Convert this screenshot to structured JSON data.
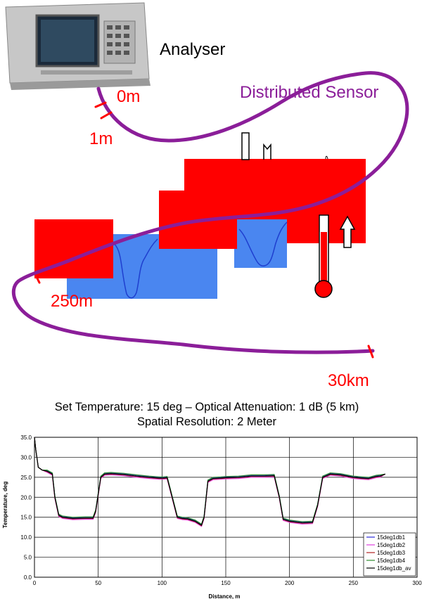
{
  "diagram": {
    "analyser_label": "Analyser",
    "sensor_label": "Distributed Sensor",
    "markers": {
      "m0": "0m",
      "m1": "1m",
      "m250": "250m",
      "km30": "30km"
    },
    "colors": {
      "fiber": "#8B1E99",
      "zone": "#FF0000",
      "water": "#4A86F0",
      "water_line": "#1F3FCF",
      "label_red": "#FF0000"
    }
  },
  "chart_data": {
    "type": "line",
    "title": "Set Temperature: 15 deg – Optical Attenuation: 1 dB (5 km)",
    "subtitle": "Spatial Resolution: 2 Meter",
    "xlabel": "Distance, m",
    "ylabel": "Temperature, deg",
    "xlim": [
      0,
      300
    ],
    "ylim": [
      0,
      35
    ],
    "xticks": [
      "0",
      "50",
      "100",
      "150",
      "200",
      "250",
      "300"
    ],
    "yticks": [
      "0.0",
      "5.0",
      "10.0",
      "15.0",
      "20.0",
      "25.0",
      "30.0",
      "35.0"
    ],
    "grid": true,
    "legend_position": "bottom-right",
    "series": [
      {
        "name": "15deg1db1",
        "color": "#2B2BD9",
        "offset": 0.2
      },
      {
        "name": "15deg1db2",
        "color": "#E040E0",
        "offset": -0.3
      },
      {
        "name": "15deg1db3",
        "color": "#B22222",
        "offset": -0.1
      },
      {
        "name": "15deg1db4",
        "color": "#2E8B2E",
        "offset": 0.3
      },
      {
        "name": "15deg1db_av",
        "color": "#000000",
        "offset": 0.0
      }
    ],
    "x": [
      0,
      1,
      3,
      6,
      10,
      14,
      16,
      19,
      22,
      30,
      40,
      46,
      48,
      52,
      55,
      60,
      70,
      80,
      90,
      98,
      101,
      104,
      108,
      112,
      116,
      120,
      126,
      131,
      133,
      136,
      140,
      146,
      150,
      160,
      170,
      180,
      188,
      192,
      195,
      200,
      210,
      218,
      222,
      226,
      232,
      240,
      250,
      257,
      262,
      268,
      271,
      275
    ],
    "y": [
      35.0,
      32.0,
      27.5,
      26.8,
      26.5,
      25.8,
      20.0,
      15.5,
      15.0,
      14.7,
      14.8,
      14.8,
      16.5,
      25.0,
      25.8,
      25.9,
      25.7,
      25.3,
      25.0,
      24.8,
      24.8,
      24.9,
      20.0,
      15.0,
      14.7,
      14.6,
      14.0,
      13.0,
      15.0,
      24.0,
      24.7,
      24.8,
      24.9,
      25.0,
      25.3,
      25.3,
      25.4,
      20.0,
      14.5,
      14.0,
      13.6,
      13.7,
      18.0,
      25.0,
      25.8,
      25.6,
      25.0,
      24.8,
      24.7,
      25.2,
      25.3,
      25.8
    ]
  }
}
